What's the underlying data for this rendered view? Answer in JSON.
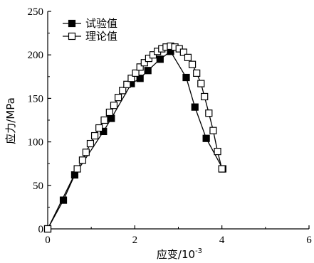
{
  "chart_data": {
    "type": "line",
    "xlabel_main": "应变/10",
    "xlabel_exp": "-3",
    "ylabel": "应力/MPa",
    "xlim": [
      0,
      6
    ],
    "ylim": [
      0,
      250
    ],
    "xticks": [
      0,
      2,
      4,
      6
    ],
    "yticks": [
      0,
      50,
      100,
      150,
      200,
      250
    ],
    "xtick_labels": [
      "0",
      "2",
      "4",
      "6"
    ],
    "ytick_labels": [
      "0",
      "50",
      "100",
      "150",
      "200",
      "250"
    ],
    "legend_position": "top-left",
    "series": [
      {
        "name": "试验值",
        "marker": "filled-square",
        "color": "#000000",
        "x": [
          0.0,
          0.36,
          0.62,
          1.28,
          1.46,
          1.92,
          2.12,
          2.3,
          2.58,
          2.82,
          3.18,
          3.38,
          3.64,
          4.02
        ],
        "y": [
          0,
          33,
          62,
          112,
          127,
          167,
          173,
          182,
          195,
          204,
          174,
          140,
          104,
          69
        ]
      },
      {
        "name": "理论值",
        "marker": "open-square",
        "color": "#000000",
        "x": [
          0.0,
          0.68,
          0.8,
          0.88,
          0.98,
          1.08,
          1.18,
          1.3,
          1.42,
          1.52,
          1.62,
          1.72,
          1.82,
          1.92,
          2.02,
          2.12,
          2.22,
          2.32,
          2.42,
          2.52,
          2.62,
          2.72,
          2.82,
          2.92,
          3.02,
          3.12,
          3.22,
          3.32,
          3.42,
          3.52,
          3.6,
          3.7,
          3.8,
          3.9,
          4.0
        ],
        "y": [
          0,
          69,
          79,
          88,
          98,
          107,
          116,
          125,
          134,
          142,
          151,
          159,
          166,
          173,
          179,
          186,
          191,
          196,
          200,
          204,
          207,
          209,
          210,
          209,
          207,
          203,
          197,
          189,
          179,
          167,
          152,
          133,
          113,
          89,
          69
        ]
      }
    ]
  }
}
